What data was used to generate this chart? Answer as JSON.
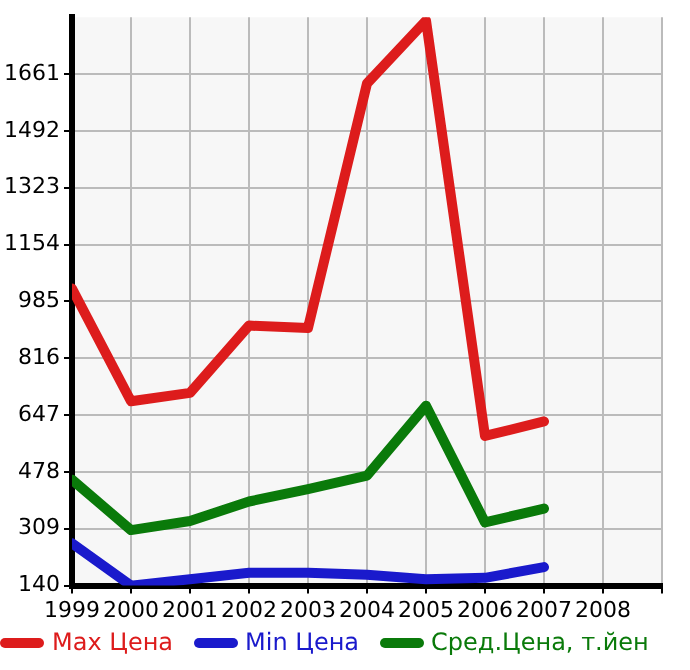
{
  "chart_data": {
    "type": "line",
    "x": [
      1999,
      2000,
      2001,
      2002,
      2003,
      2004,
      2005,
      2006,
      2007
    ],
    "xlim": [
      1999,
      2009
    ],
    "xticks": [
      1999,
      2000,
      2001,
      2002,
      2003,
      2004,
      2005,
      2006,
      2007,
      2008,
      {
        "value": 2009,
        "label": null
      }
    ],
    "ylim": [
      140,
      1830
    ],
    "yticks": [
      140,
      309,
      478,
      647,
      816,
      985,
      1154,
      1323,
      1492,
      1661
    ],
    "grid": true,
    "legend": "bottom",
    "marker": "none",
    "line_style": "solid",
    "series": [
      {
        "name": "Max Цена",
        "color": "#dd1c1c",
        "values": [
          1023,
          688,
          713,
          913,
          906,
          1633,
          1820,
          585,
          628
        ]
      },
      {
        "name": "Min Цена",
        "color": "#1a1acc",
        "values": [
          266,
          140,
          159,
          178,
          178,
          172,
          159,
          163,
          195
        ]
      },
      {
        "name": "Сред.Цена, т.йен",
        "color": "#0a7a0a",
        "values": [
          455,
          305,
          332,
          390,
          427,
          467,
          675,
          328,
          369
        ]
      }
    ]
  }
}
